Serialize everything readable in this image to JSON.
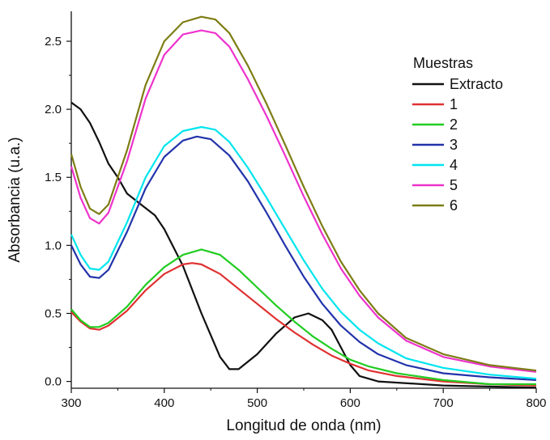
{
  "chart_data": {
    "type": "line",
    "xlabel": "Longitud de onda (nm)",
    "ylabel": "Absorbancia (u.a.)",
    "xlim": [
      300,
      800
    ],
    "ylim": [
      -0.05,
      2.72
    ],
    "x_ticks": [
      300,
      400,
      500,
      600,
      700,
      800
    ],
    "y_ticks": [
      0.0,
      0.5,
      1.0,
      1.5,
      2.0,
      2.5
    ],
    "x_tick_labels": [
      "300",
      "400",
      "500",
      "600",
      "700",
      "800"
    ],
    "y_tick_labels": [
      "0.0",
      "0.5",
      "1.0",
      "1.5",
      "2.0",
      "2.5"
    ],
    "grid": false,
    "legend": {
      "title": "Muestras",
      "position": "top-right"
    },
    "series": [
      {
        "name": "Extracto",
        "color": "#111111",
        "points": [
          [
            300,
            2.05
          ],
          [
            310,
            2.0
          ],
          [
            320,
            1.9
          ],
          [
            330,
            1.76
          ],
          [
            340,
            1.6
          ],
          [
            350,
            1.5
          ],
          [
            360,
            1.38
          ],
          [
            375,
            1.3
          ],
          [
            390,
            1.22
          ],
          [
            400,
            1.12
          ],
          [
            420,
            0.85
          ],
          [
            440,
            0.5
          ],
          [
            460,
            0.18
          ],
          [
            470,
            0.09
          ],
          [
            480,
            0.09
          ],
          [
            500,
            0.2
          ],
          [
            520,
            0.35
          ],
          [
            540,
            0.47
          ],
          [
            555,
            0.5
          ],
          [
            570,
            0.45
          ],
          [
            580,
            0.38
          ],
          [
            590,
            0.25
          ],
          [
            600,
            0.12
          ],
          [
            610,
            0.04
          ],
          [
            630,
            0.0
          ],
          [
            700,
            -0.03
          ],
          [
            800,
            -0.045
          ]
        ]
      },
      {
        "name": "1",
        "color": "#e03030",
        "points": [
          [
            300,
            0.51
          ],
          [
            310,
            0.44
          ],
          [
            320,
            0.39
          ],
          [
            330,
            0.38
          ],
          [
            340,
            0.41
          ],
          [
            360,
            0.52
          ],
          [
            380,
            0.67
          ],
          [
            400,
            0.79
          ],
          [
            420,
            0.86
          ],
          [
            430,
            0.87
          ],
          [
            440,
            0.86
          ],
          [
            460,
            0.79
          ],
          [
            480,
            0.68
          ],
          [
            500,
            0.57
          ],
          [
            520,
            0.46
          ],
          [
            540,
            0.36
          ],
          [
            560,
            0.27
          ],
          [
            580,
            0.19
          ],
          [
            600,
            0.13
          ],
          [
            620,
            0.08
          ],
          [
            650,
            0.04
          ],
          [
            700,
            0.0
          ],
          [
            750,
            -0.02
          ],
          [
            800,
            -0.03
          ]
        ]
      },
      {
        "name": "2",
        "color": "#22cc22",
        "points": [
          [
            300,
            0.53
          ],
          [
            310,
            0.45
          ],
          [
            320,
            0.4
          ],
          [
            330,
            0.4
          ],
          [
            340,
            0.43
          ],
          [
            360,
            0.55
          ],
          [
            380,
            0.71
          ],
          [
            400,
            0.84
          ],
          [
            420,
            0.93
          ],
          [
            440,
            0.97
          ],
          [
            460,
            0.93
          ],
          [
            480,
            0.82
          ],
          [
            500,
            0.69
          ],
          [
            520,
            0.56
          ],
          [
            540,
            0.44
          ],
          [
            560,
            0.33
          ],
          [
            580,
            0.24
          ],
          [
            600,
            0.16
          ],
          [
            620,
            0.11
          ],
          [
            650,
            0.06
          ],
          [
            700,
            0.01
          ],
          [
            750,
            -0.02
          ],
          [
            800,
            -0.02
          ]
        ]
      },
      {
        "name": "3",
        "color": "#2233aa",
        "points": [
          [
            300,
            1.0
          ],
          [
            310,
            0.86
          ],
          [
            320,
            0.77
          ],
          [
            330,
            0.76
          ],
          [
            340,
            0.82
          ],
          [
            360,
            1.1
          ],
          [
            380,
            1.42
          ],
          [
            400,
            1.65
          ],
          [
            420,
            1.77
          ],
          [
            435,
            1.8
          ],
          [
            450,
            1.78
          ],
          [
            470,
            1.66
          ],
          [
            490,
            1.47
          ],
          [
            510,
            1.24
          ],
          [
            530,
            1.0
          ],
          [
            550,
            0.77
          ],
          [
            570,
            0.57
          ],
          [
            590,
            0.41
          ],
          [
            610,
            0.29
          ],
          [
            630,
            0.2
          ],
          [
            660,
            0.12
          ],
          [
            700,
            0.06
          ],
          [
            750,
            0.03
          ],
          [
            800,
            0.01
          ]
        ]
      },
      {
        "name": "4",
        "color": "#00e5ee",
        "points": [
          [
            300,
            1.08
          ],
          [
            310,
            0.93
          ],
          [
            320,
            0.83
          ],
          [
            330,
            0.82
          ],
          [
            340,
            0.88
          ],
          [
            360,
            1.17
          ],
          [
            380,
            1.5
          ],
          [
            400,
            1.73
          ],
          [
            420,
            1.84
          ],
          [
            440,
            1.87
          ],
          [
            455,
            1.85
          ],
          [
            470,
            1.76
          ],
          [
            490,
            1.57
          ],
          [
            510,
            1.35
          ],
          [
            530,
            1.12
          ],
          [
            550,
            0.89
          ],
          [
            570,
            0.68
          ],
          [
            590,
            0.51
          ],
          [
            610,
            0.38
          ],
          [
            630,
            0.28
          ],
          [
            660,
            0.17
          ],
          [
            700,
            0.1
          ],
          [
            750,
            0.05
          ],
          [
            800,
            0.02
          ]
        ]
      },
      {
        "name": "5",
        "color": "#ee33cc",
        "points": [
          [
            300,
            1.58
          ],
          [
            310,
            1.35
          ],
          [
            320,
            1.2
          ],
          [
            330,
            1.16
          ],
          [
            340,
            1.24
          ],
          [
            360,
            1.62
          ],
          [
            380,
            2.08
          ],
          [
            400,
            2.4
          ],
          [
            420,
            2.55
          ],
          [
            440,
            2.58
          ],
          [
            455,
            2.56
          ],
          [
            470,
            2.46
          ],
          [
            490,
            2.22
          ],
          [
            510,
            1.95
          ],
          [
            530,
            1.66
          ],
          [
            550,
            1.36
          ],
          [
            570,
            1.08
          ],
          [
            590,
            0.83
          ],
          [
            610,
            0.63
          ],
          [
            630,
            0.47
          ],
          [
            660,
            0.3
          ],
          [
            700,
            0.18
          ],
          [
            750,
            0.11
          ],
          [
            800,
            0.07
          ]
        ]
      },
      {
        "name": "6",
        "color": "#7d7d15",
        "points": [
          [
            300,
            1.67
          ],
          [
            310,
            1.43
          ],
          [
            320,
            1.27
          ],
          [
            330,
            1.23
          ],
          [
            340,
            1.3
          ],
          [
            360,
            1.7
          ],
          [
            380,
            2.18
          ],
          [
            400,
            2.5
          ],
          [
            420,
            2.64
          ],
          [
            440,
            2.68
          ],
          [
            455,
            2.66
          ],
          [
            470,
            2.56
          ],
          [
            490,
            2.32
          ],
          [
            510,
            2.04
          ],
          [
            530,
            1.74
          ],
          [
            550,
            1.43
          ],
          [
            570,
            1.14
          ],
          [
            590,
            0.88
          ],
          [
            610,
            0.67
          ],
          [
            630,
            0.5
          ],
          [
            660,
            0.32
          ],
          [
            700,
            0.2
          ],
          [
            750,
            0.12
          ],
          [
            800,
            0.08
          ]
        ]
      }
    ]
  }
}
